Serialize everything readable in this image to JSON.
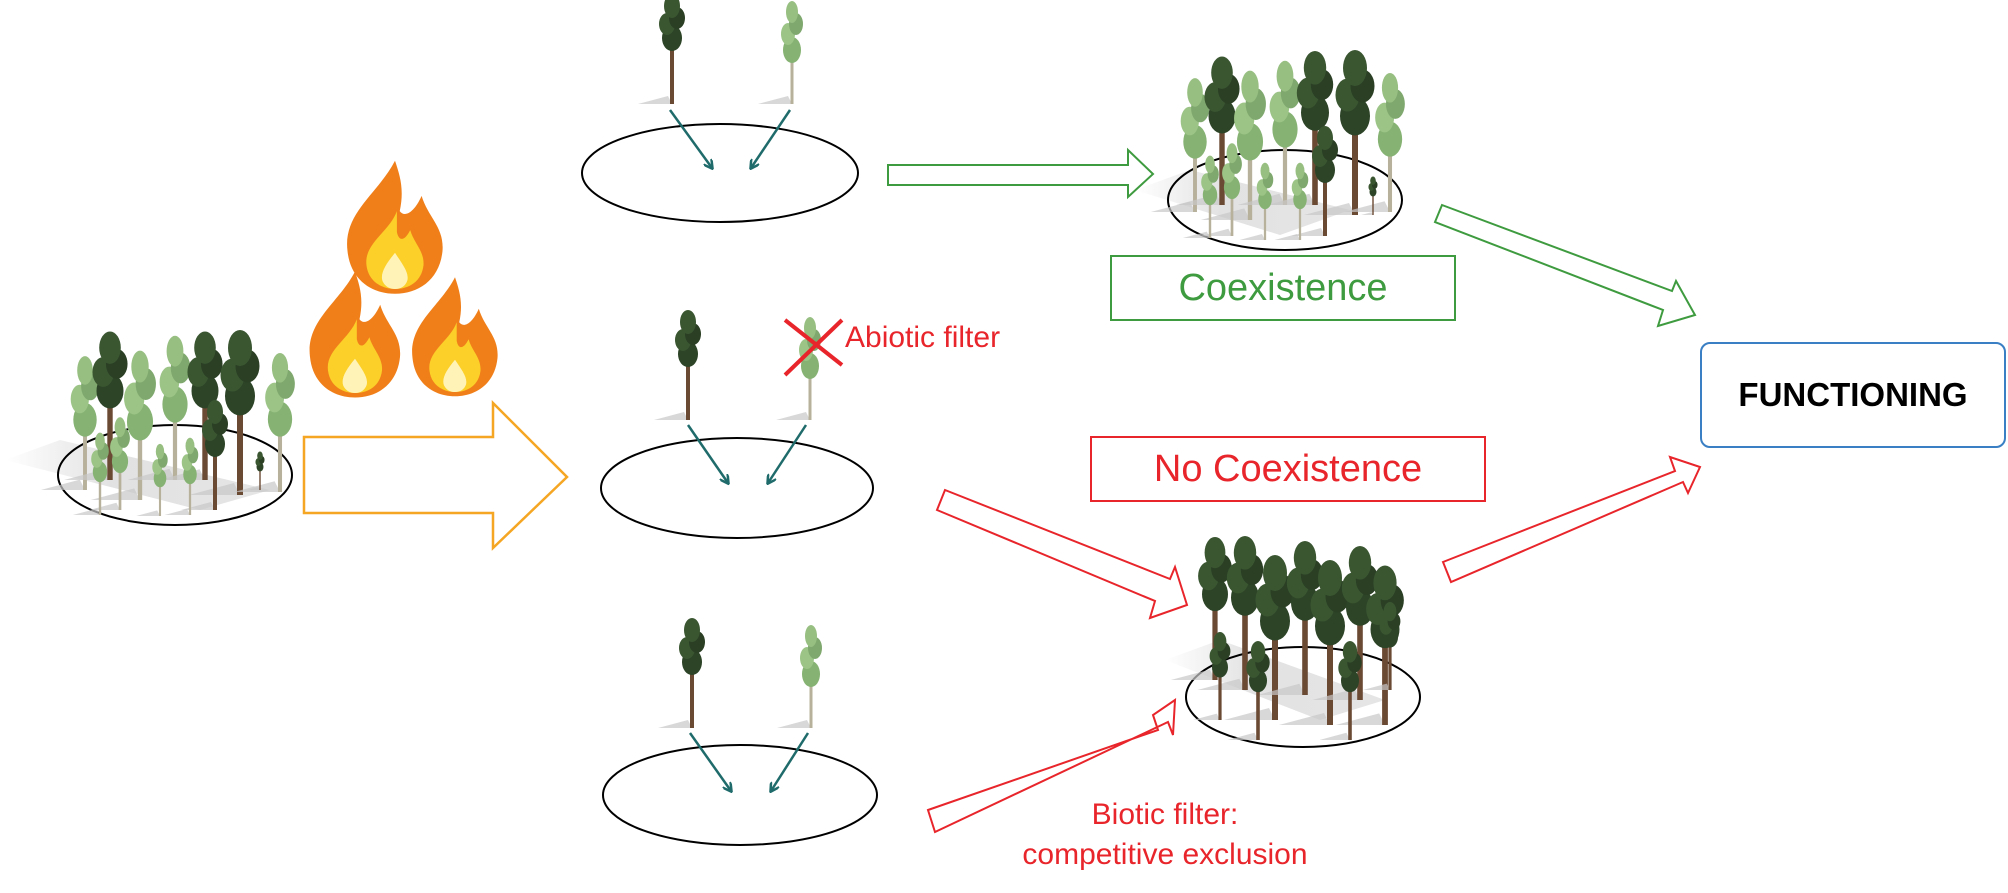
{
  "labels": {
    "coexistence": "Coexistence",
    "no_coexistence": "No Coexistence",
    "functioning": "FUNCTIONING",
    "abiotic_filter": "Abiotic filter",
    "biotic_filter_line1": "Biotic filter:",
    "biotic_filter_line2": "competitive exclusion"
  },
  "icons": {
    "disturbance": "fire-icon",
    "species_a": "dark-pine-tree-icon",
    "species_b": "light-broadleaf-tree-icon",
    "exclusion": "red-x-icon"
  },
  "colors": {
    "fire_arrow": "#f5a623",
    "coexistence": "#3f9b3f",
    "no_coexistence": "#e8252b",
    "functioning_border": "#3a7fc4",
    "seed_arrow": "#1f6b6b",
    "dark_tree": "#2f4a2a",
    "light_tree": "#8ab57a"
  }
}
